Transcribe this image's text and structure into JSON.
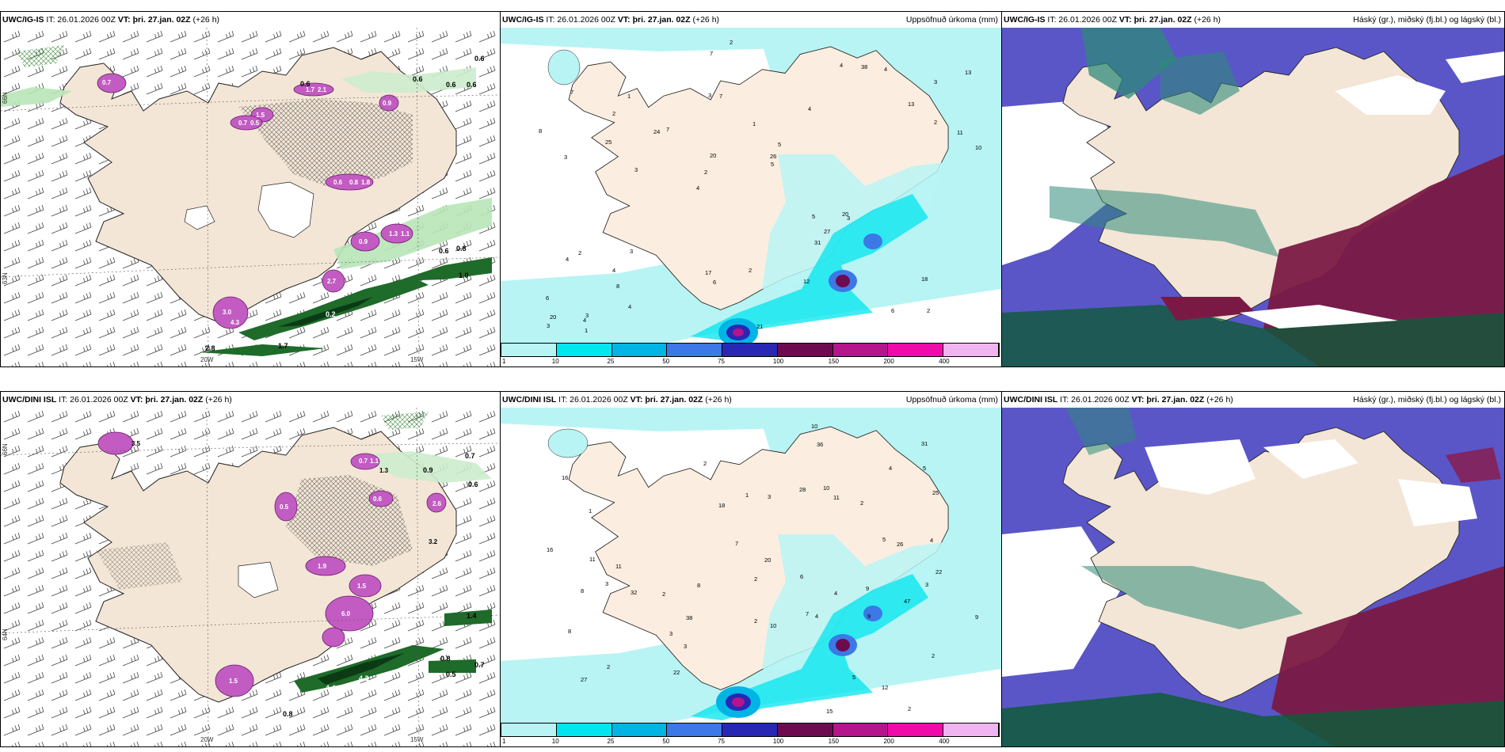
{
  "panels": {
    "tl": {
      "model": "UWC/IG-IS",
      "it": "IT: 26.01.2026 00Z",
      "vt_label": "VT:",
      "vt": "þri. 27.jan. 02Z",
      "lead": "(+26 h)"
    },
    "tm": {
      "model": "UWC/IG-IS",
      "it": "IT: 26.01.2026 00Z",
      "vt_label": "VT:",
      "vt": "þri. 27.jan. 02Z",
      "lead": "(+26 h)",
      "right": "Uppsöfnuð úrkoma (mm)"
    },
    "tr": {
      "model": "UWC/IG-IS",
      "it": "IT: 26.01.2026 00Z",
      "vt_label": "VT:",
      "vt": "þri. 27.jan. 02Z",
      "lead": "(+26 h)",
      "right": "Háský (gr.), miðský (fj.bl.) og lágský (bl.)"
    },
    "bl": {
      "model": "UWC/DINI ISL",
      "it": "IT: 26.01.2026 00Z",
      "vt_label": "VT:",
      "vt": "þri. 27.jan. 02Z",
      "lead": "(+26 h)"
    },
    "bm": {
      "model": "UWC/DINI ISL",
      "it": "IT: 26.01.2026 00Z",
      "vt_label": "VT:",
      "vt": "þri. 27.jan. 02Z",
      "lead": "(+26 h)",
      "right": "Uppsöfnuð úrkoma (mm)"
    },
    "br": {
      "model": "UWC/DINI ISL",
      "it": "IT: 26.01.2026 00Z",
      "vt_label": "VT:",
      "vt": "þri. 27.jan. 02Z",
      "lead": "(+26 h)",
      "right": "Háský (gr.), miðský (fj.bl.) og lágský (bl.)"
    }
  },
  "axis_labels": {
    "lon_20": "20W",
    "lon_15": "15W",
    "lat_66": "66N",
    "lat_64": "64N",
    "lat_63": "63N"
  },
  "colorbar": {
    "ticks": [
      "1",
      "10",
      "25",
      "50",
      "75",
      "100",
      "150",
      "200",
      "400"
    ],
    "colors": [
      "#b8f4f4",
      "#00e6ee",
      "#00b4e6",
      "#3c78e6",
      "#2828b4",
      "#6e0a50",
      "#b4148c",
      "#f00aaa",
      "#f0b4f0"
    ]
  },
  "precip_top": [
    "2",
    "3",
    "3",
    "4",
    "4",
    "3",
    "3",
    "1",
    "2",
    "7",
    "6",
    "8",
    "7",
    "5",
    "3",
    "7",
    "7",
    "10",
    "5",
    "2",
    "2",
    "17",
    "20",
    "1",
    "4",
    "3",
    "6",
    "18",
    "20",
    "21",
    "24",
    "25",
    "31",
    "4",
    "11",
    "26",
    "20",
    "6",
    "5",
    "4",
    "13",
    "13",
    "27",
    "12",
    "4",
    "1",
    "3",
    "2",
    "4",
    "2",
    "3",
    "8",
    "2",
    "38",
    "4"
  ],
  "precip_bot": [
    "2",
    "3",
    "7",
    "16",
    "2",
    "1",
    "2",
    "2",
    "2",
    "1",
    "11",
    "12",
    "3",
    "2",
    "6",
    "8",
    "9",
    "20",
    "16",
    "27",
    "31",
    "3",
    "5",
    "9",
    "22",
    "11",
    "32",
    "2",
    "7",
    "5",
    "4",
    "8",
    "3",
    "10",
    "18",
    "47",
    "3",
    "5",
    "4",
    "15",
    "38",
    "10",
    "22",
    "10",
    "8",
    "11",
    "25",
    "36",
    "28",
    "2",
    "4",
    "4",
    "9",
    "26"
  ],
  "green_labels_top": [
    "0.6",
    "0.6",
    "0.6",
    "0.6",
    "0.6",
    "0.6",
    "0.8",
    "1.0",
    "1.7",
    "2.8",
    "0.2"
  ],
  "green_labels_bot": [
    "0.8",
    "0.7",
    "0.9",
    "0.6",
    "1.4",
    "0.5",
    "0.7",
    "0.8",
    "4.4",
    "4.2"
  ],
  "pink_labels_top": [
    "0.7",
    "1.7",
    "2.1",
    "0.9",
    "1.5",
    "0.6",
    "0.8",
    "1.8",
    "1.3",
    "1.1",
    "0.9",
    "0.7",
    "0.5",
    "2.7",
    "3.0",
    "4.3"
  ],
  "pink_labels_bot": [
    "3.5",
    "0.7",
    "1.1",
    "1.3",
    "0.5",
    "1.9",
    "0.6",
    "2.6",
    "1.5",
    "3.2",
    "6.0",
    "1.5"
  ]
}
